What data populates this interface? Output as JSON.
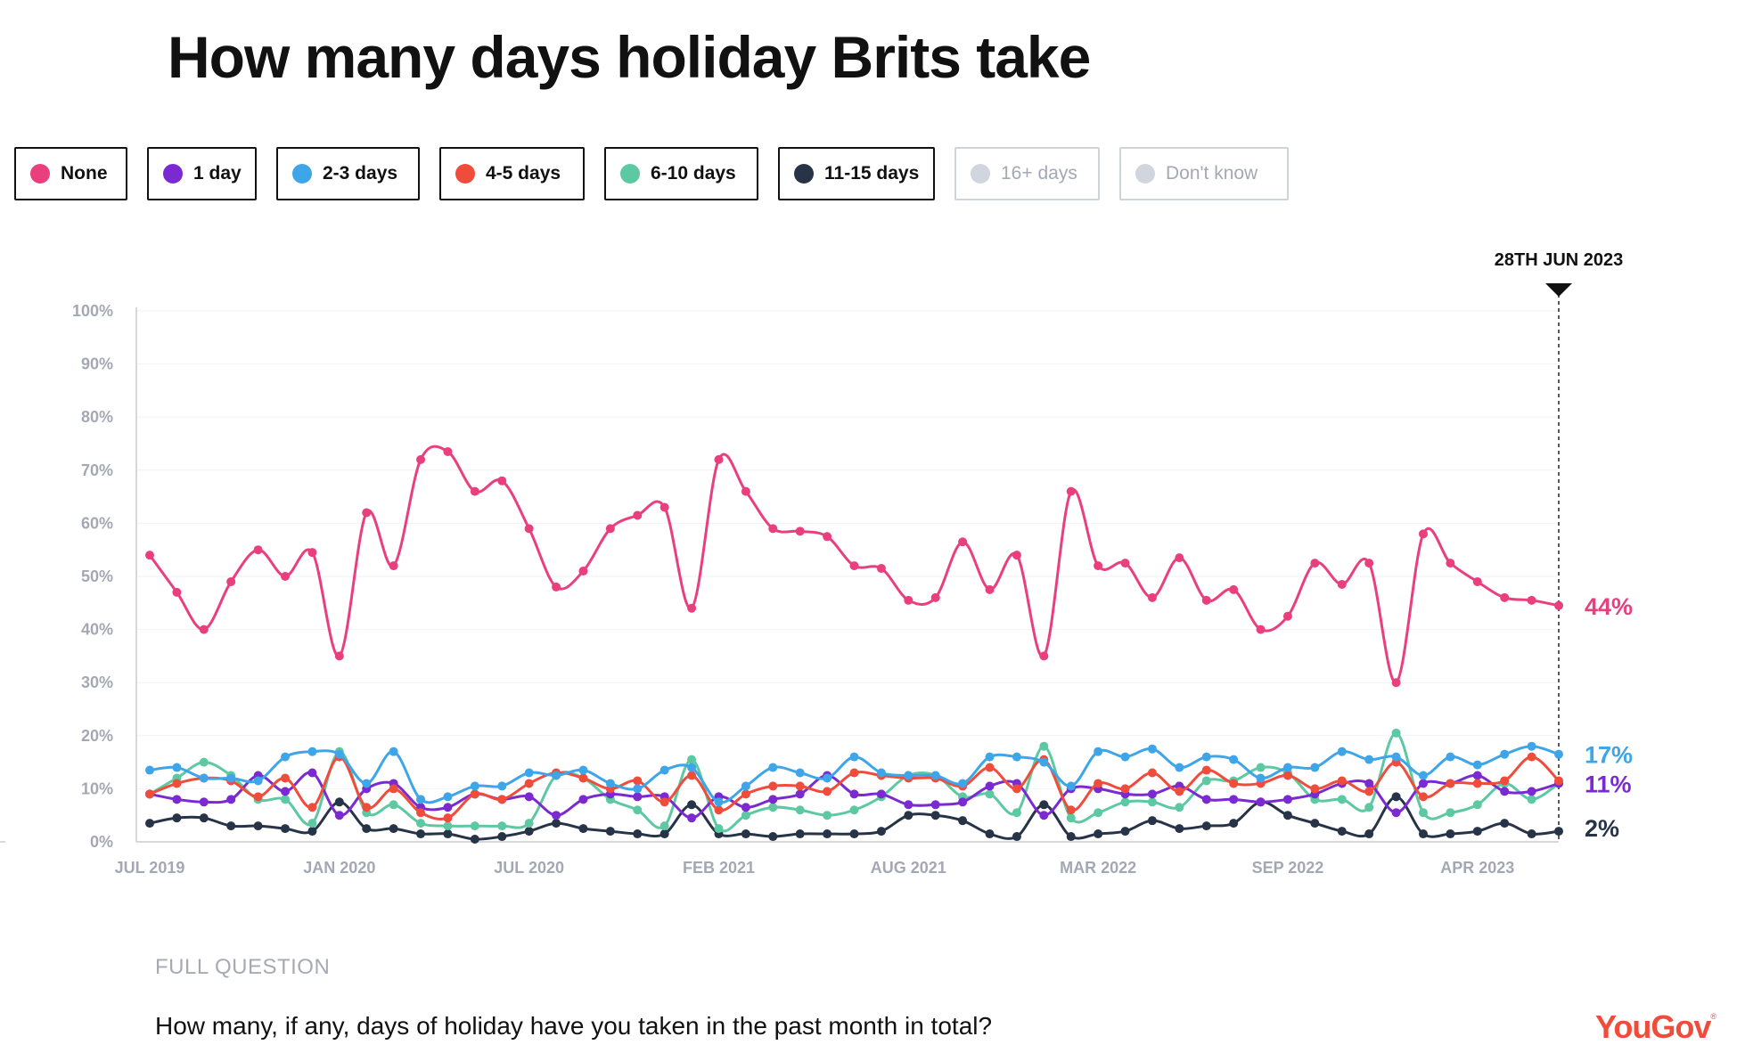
{
  "title": "How many days holiday Brits take",
  "legend": [
    {
      "label": "None",
      "color": "#ea3f7f",
      "active": true
    },
    {
      "label": "1 day",
      "color": "#7b2ad1",
      "active": true
    },
    {
      "label": "2-3 days",
      "color": "#3ea6e8",
      "active": true
    },
    {
      "label": "4-5 days",
      "color": "#ef4c3c",
      "active": true
    },
    {
      "label": "6-10 days",
      "color": "#5cc9a2",
      "active": true
    },
    {
      "label": "11-15 days",
      "color": "#273347",
      "active": true
    },
    {
      "label": "16+ days",
      "color": "#d1d5dd",
      "active": false
    },
    {
      "label": "Don't know",
      "color": "#d1d5dd",
      "active": false
    }
  ],
  "chart_data": {
    "type": "line",
    "x_tick_labels": [
      "JUL 2019",
      "JAN 2020",
      "JUL 2020",
      "FEB 2021",
      "AUG 2021",
      "MAR 2022",
      "SEP 2022",
      "APR 2023"
    ],
    "x_tick_indices": [
      0,
      7,
      14,
      21,
      28,
      35,
      42,
      49
    ],
    "y_tick_labels": [
      "100%",
      "90%",
      "80%",
      "70%",
      "60%",
      "50%",
      "40%",
      "30%",
      "20%",
      "10%",
      "0%"
    ],
    "ylim": [
      0,
      100
    ],
    "marker_label": "28TH JUN 2023",
    "series": [
      {
        "name": "None",
        "color": "#ea3f7f",
        "end_label": "44%",
        "values": [
          54,
          47,
          40,
          49,
          55,
          50,
          54.5,
          35,
          62,
          52,
          72,
          73.5,
          66,
          68,
          59,
          48,
          51,
          59,
          61.5,
          63,
          44,
          72,
          66,
          59,
          58.5,
          57.5,
          52,
          51.5,
          45.5,
          46,
          56.5,
          47.5,
          54,
          35,
          66,
          52,
          52.5,
          46,
          53.5,
          45.5,
          47.5,
          40,
          42.5,
          52.5,
          48.5,
          52.5,
          30,
          58,
          52.5,
          49,
          46,
          45.5,
          44.5
        ]
      },
      {
        "name": "2-3 days",
        "color": "#3ea6e8",
        "end_label": "17%",
        "values": [
          13.5,
          14,
          12,
          12,
          11.5,
          16,
          17,
          16.5,
          11,
          17,
          8,
          8.5,
          10.5,
          10.5,
          13,
          12.5,
          13.5,
          11,
          10,
          13.5,
          14,
          7.5,
          10.5,
          14,
          13,
          12,
          16,
          13,
          12.5,
          12.5,
          11,
          16,
          16,
          15,
          10.5,
          17,
          16,
          17.5,
          14,
          16,
          15.5,
          12,
          14,
          14,
          17,
          15.5,
          16,
          12.5,
          16,
          14.5,
          16.5,
          18,
          16.5
        ]
      },
      {
        "name": "4-5 days",
        "color": "#ef4c3c",
        "end_label": "",
        "values": [
          9,
          11,
          12,
          11.5,
          8.5,
          12,
          6.5,
          16,
          6.5,
          10,
          5.5,
          4.5,
          9,
          8,
          11,
          13,
          12,
          10,
          11.5,
          7.5,
          12.5,
          6,
          9,
          10.5,
          10.5,
          9.5,
          13,
          12.5,
          12,
          12,
          10.5,
          14,
          10,
          15.5,
          6,
          11,
          10,
          13,
          9.5,
          13.5,
          11,
          11,
          12.5,
          10,
          11.5,
          9.5,
          15,
          8.5,
          11,
          11,
          11.5,
          16,
          11.5
        ]
      },
      {
        "name": "1 day",
        "color": "#7b2ad1",
        "end_label": "11%",
        "values": [
          9,
          8,
          7.5,
          8,
          12.5,
          9.5,
          13,
          5,
          10,
          11,
          6.5,
          6.5,
          9,
          8,
          8.5,
          5,
          8,
          9,
          8.5,
          8.5,
          4.5,
          8.5,
          6.5,
          8,
          9,
          12.5,
          9,
          9,
          7,
          7,
          7.5,
          10.5,
          11,
          5,
          10,
          10,
          9,
          9,
          10.5,
          8,
          8,
          7.5,
          8,
          9,
          11,
          11,
          5.5,
          11,
          11,
          12.5,
          9.5,
          9.5,
          11
        ]
      },
      {
        "name": "6-10 days",
        "color": "#5cc9a2",
        "end_label": "",
        "values": [
          9,
          12,
          15,
          12.5,
          8,
          8,
          3.5,
          17,
          5.5,
          7,
          3.5,
          3,
          3,
          3,
          3.5,
          12.5,
          12,
          8,
          6,
          3,
          15.5,
          2.5,
          5,
          6.5,
          6,
          5,
          6,
          8.5,
          12.5,
          12.5,
          8.5,
          9,
          5.5,
          18,
          4.5,
          5.5,
          7.5,
          7.5,
          6.5,
          11.5,
          11.5,
          14,
          13,
          8,
          8,
          6.5,
          20.5,
          5.5,
          5.5,
          7,
          11,
          8,
          11
        ]
      },
      {
        "name": "11-15 days",
        "color": "#273347",
        "end_label": "2%",
        "values": [
          3.5,
          4.5,
          4.5,
          3,
          3,
          2.5,
          2,
          7.5,
          2.5,
          2.5,
          1.5,
          1.5,
          0.5,
          1,
          2,
          3.5,
          2.5,
          2,
          1.5,
          1.5,
          7,
          1.5,
          1.5,
          1,
          1.5,
          1.5,
          1.5,
          2,
          5,
          5,
          4,
          1.5,
          1,
          7,
          1,
          1.5,
          2,
          4,
          2.5,
          3,
          3.5,
          7.5,
          5,
          3.5,
          2,
          1.5,
          8.5,
          1.5,
          1.5,
          2,
          3.5,
          1.5,
          2
        ]
      }
    ]
  },
  "footer": {
    "question_label": "FULL QUESTION",
    "question_text": "How many, if any, days of holiday have you taken in the past month in total?",
    "brand": "YouGov",
    "brand_mark": "®"
  }
}
